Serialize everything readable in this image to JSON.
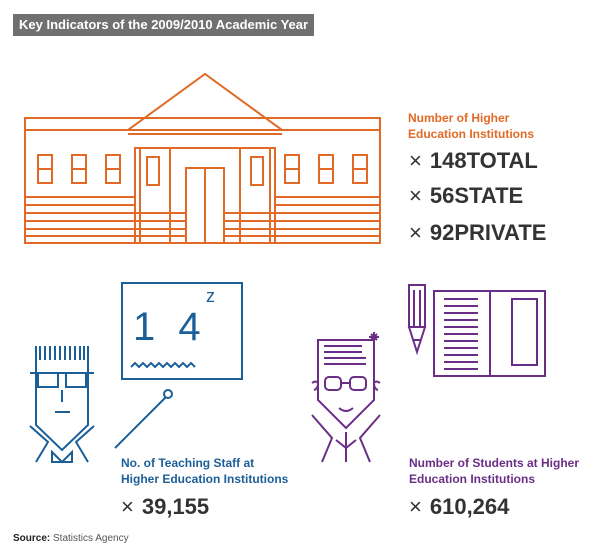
{
  "header": {
    "title": "Key Indicators of the 2009/2010 Academic Year"
  },
  "institutions": {
    "label_line1": "Number of Higher",
    "label_line2": "Education Institutions",
    "stats": [
      {
        "symbol": "×",
        "value": "148",
        "unit": "TOTAL"
      },
      {
        "symbol": "×",
        "value": "56",
        "unit": "STATE"
      },
      {
        "symbol": "×",
        "value": "92",
        "unit": "PRIVATE"
      }
    ]
  },
  "teaching_staff": {
    "label_line1": "No. of Teaching Staff at",
    "label_line2": "Higher Education Institutions",
    "symbol": "×",
    "value": "39,155"
  },
  "students": {
    "label_line1": "Number of Students at Higher",
    "label_line2": "Education Institutions",
    "symbol": "×",
    "value": "610,264"
  },
  "blackboard": {
    "numbers": "1 4",
    "exponent": "z"
  },
  "source": {
    "label": "Source:",
    "text": "Statistics Agency"
  },
  "colors": {
    "orange": "#e06a26",
    "blue": "#1b5f98",
    "purple": "#6a2e86",
    "badge": "#707070"
  },
  "icons": [
    "building-icon",
    "teacher-icon",
    "blackboard-icon",
    "pointer-icon",
    "student-icon",
    "pencil-icon",
    "book-icon"
  ]
}
